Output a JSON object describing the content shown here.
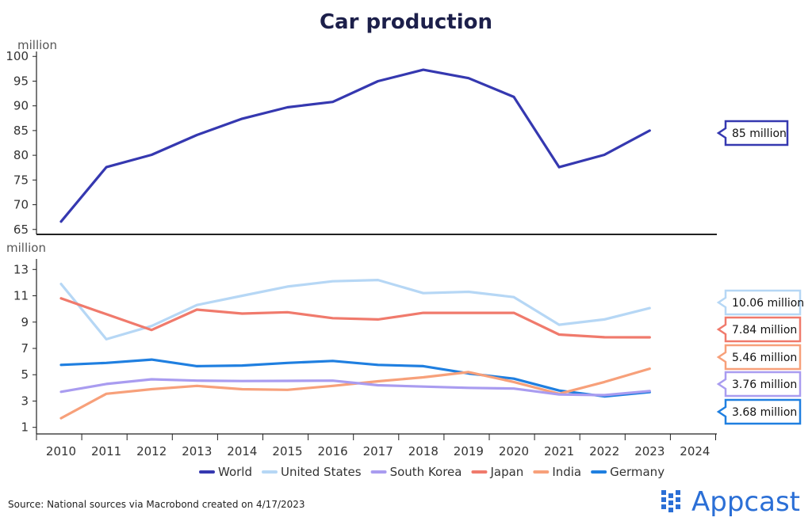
{
  "chart_data": {
    "type": "line",
    "title": "Car production",
    "source": "Source: National sources via Macrobond created on 4/17/2023",
    "logo": "Appcast",
    "x": [
      2010,
      2011,
      2012,
      2013,
      2014,
      2015,
      2016,
      2017,
      2018,
      2019,
      2020,
      2021,
      2022,
      2023
    ],
    "x_ticks": [
      "2010",
      "2011",
      "2012",
      "2013",
      "2014",
      "2015",
      "2016",
      "2017",
      "2018",
      "2019",
      "2020",
      "2021",
      "2022",
      "2023",
      "2024"
    ],
    "panels": [
      {
        "unit_label": "million",
        "ylim": [
          64,
          101
        ],
        "yticks": [
          "65",
          "70",
          "75",
          "80",
          "85",
          "90",
          "95",
          "100"
        ],
        "series": [
          "World"
        ]
      },
      {
        "unit_label": "million",
        "ylim": [
          0.5,
          13.8
        ],
        "yticks": [
          "1",
          "3",
          "5",
          "7",
          "9",
          "11",
          "13"
        ],
        "series": [
          "United States",
          "Japan",
          "Germany",
          "India",
          "South Korea"
        ]
      }
    ],
    "series": [
      {
        "name": "World",
        "color": "#3538b0",
        "values": [
          66.6,
          77.6,
          80.1,
          84.1,
          87.4,
          89.7,
          90.8,
          95.0,
          97.3,
          95.6,
          91.8,
          77.6,
          80.1,
          85.0
        ],
        "callout": "85 million"
      },
      {
        "name": "United States",
        "color": "#b6d7f5",
        "values": [
          11.9,
          7.7,
          8.7,
          10.3,
          11.0,
          11.7,
          12.1,
          12.2,
          11.2,
          11.3,
          10.9,
          8.8,
          9.2,
          10.06
        ],
        "callout": "10.06 million"
      },
      {
        "name": "South Korea",
        "color": "#a99cf0",
        "values": [
          3.7,
          4.3,
          4.65,
          4.55,
          4.52,
          4.53,
          4.55,
          4.2,
          4.1,
          4.0,
          3.95,
          3.5,
          3.45,
          3.76
        ],
        "callout": "3.76 million"
      },
      {
        "name": "Japan",
        "color": "#f07a6c",
        "values": [
          10.8,
          9.6,
          8.4,
          9.95,
          9.65,
          9.75,
          9.3,
          9.2,
          9.7,
          9.7,
          9.7,
          8.05,
          7.85,
          7.84
        ],
        "callout": "7.84 million"
      },
      {
        "name": "India",
        "color": "#f7a07a",
        "values": [
          1.7,
          3.55,
          3.9,
          4.15,
          3.9,
          3.85,
          4.15,
          4.5,
          4.8,
          5.2,
          4.45,
          3.55,
          4.45,
          5.46
        ],
        "callout": "5.46 million"
      },
      {
        "name": "Germany",
        "color": "#1f7fe0",
        "values": [
          5.75,
          5.9,
          6.15,
          5.65,
          5.7,
          5.9,
          6.05,
          5.75,
          5.65,
          5.1,
          4.7,
          3.8,
          3.35,
          3.68
        ],
        "callout": "3.68 million"
      }
    ],
    "lower_callout_order": [
      "United States",
      "Japan",
      "India",
      "South Korea",
      "Germany"
    ],
    "legend_order": [
      "World",
      "United States",
      "South Korea",
      "Japan",
      "India",
      "Germany"
    ],
    "legend_position": "bottom"
  }
}
